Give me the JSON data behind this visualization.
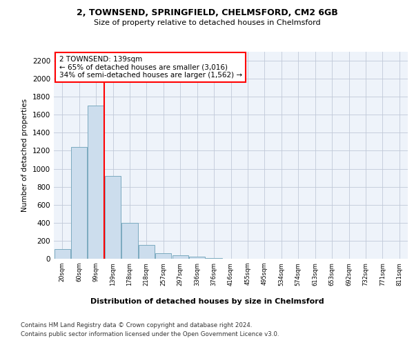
{
  "title": "2, TOWNSEND, SPRINGFIELD, CHELMSFORD, CM2 6GB",
  "subtitle": "Size of property relative to detached houses in Chelmsford",
  "xlabel": "Distribution of detached houses by size in Chelmsford",
  "ylabel": "Number of detached properties",
  "categories": [
    "20sqm",
    "60sqm",
    "99sqm",
    "139sqm",
    "178sqm",
    "218sqm",
    "257sqm",
    "297sqm",
    "336sqm",
    "376sqm",
    "416sqm",
    "455sqm",
    "495sqm",
    "534sqm",
    "574sqm",
    "613sqm",
    "653sqm",
    "692sqm",
    "732sqm",
    "771sqm",
    "811sqm"
  ],
  "values": [
    110,
    1240,
    1700,
    920,
    400,
    155,
    65,
    35,
    20,
    8,
    0,
    0,
    0,
    0,
    0,
    0,
    0,
    0,
    0,
    0,
    0
  ],
  "bar_color": "#ccdded",
  "bar_edge_color": "#7aaabf",
  "vline_index": 3,
  "vline_color": "red",
  "annotation_text": "2 TOWNSEND: 139sqm\n← 65% of detached houses are smaller (3,016)\n34% of semi-detached houses are larger (1,562) →",
  "ylim": [
    0,
    2300
  ],
  "yticks": [
    0,
    200,
    400,
    600,
    800,
    1000,
    1200,
    1400,
    1600,
    1800,
    2000,
    2200
  ],
  "footer_line1": "Contains HM Land Registry data © Crown copyright and database right 2024.",
  "footer_line2": "Contains public sector information licensed under the Open Government Licence v3.0.",
  "bg_color": "#ffffff",
  "plot_bg_color": "#eef3fa",
  "grid_color": "#c0c8d8"
}
